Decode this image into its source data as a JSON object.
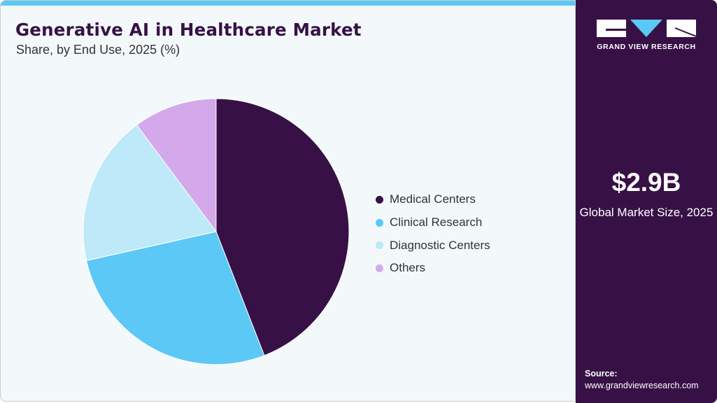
{
  "header": {
    "title": "Generative AI in Healthcare Market",
    "subtitle": "Share, by End Use, 2025 (%)"
  },
  "chart_data": {
    "type": "pie",
    "title": "Generative AI in Healthcare Market",
    "subtitle": "Share, by End Use, 2025 (%)",
    "legend_position": "right",
    "start_angle": "12 o'clock, clockwise",
    "slices": [
      {
        "name": "Medical Centers",
        "value": 44.1,
        "color": "#371146"
      },
      {
        "name": "Clinical Research",
        "value": 27.4,
        "color": "#5bc8f5"
      },
      {
        "name": "Diagnostic Centers",
        "value": 18.3,
        "color": "#bde9f9"
      },
      {
        "name": "Others",
        "value": 10.2,
        "color": "#d4a9ec"
      }
    ]
  },
  "sidebar": {
    "logo_text": "GRAND VIEW RESEARCH",
    "market_size": "$2.9B",
    "market_size_label": "Global Market Size, 2025",
    "source_label": "Source:",
    "source_url": "www.grandviewresearch.com"
  },
  "colors": {
    "brand_dark": "#371146",
    "accent": "#5bc8f5",
    "background": "#f3f8fb"
  }
}
